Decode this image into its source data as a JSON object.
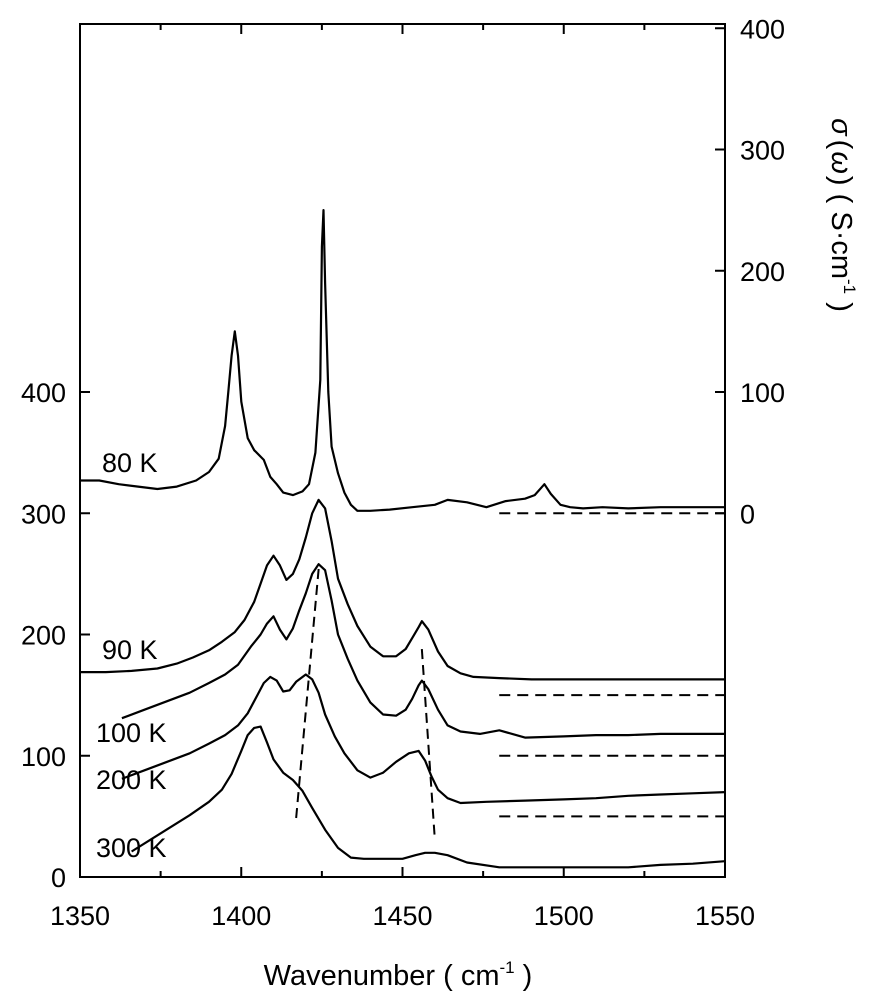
{
  "chart_data": {
    "type": "line",
    "xlabel": "Wavenumber ( cm",
    "xlabel_sup": "-1",
    "xlabel_end": " )",
    "ylabel_right_parts": [
      "σ",
      "(",
      "ω",
      ")",
      " ( S·cm",
      "-1",
      " )"
    ],
    "x_ticks": [
      "1350",
      "1400",
      "1450",
      "1500",
      "1550"
    ],
    "y_ticks_left": [
      "0",
      "100",
      "200",
      "300",
      "400"
    ],
    "y_ticks_right": [
      "0",
      "100",
      "200",
      "300",
      "400"
    ],
    "xlim": [
      1350,
      1550
    ],
    "ylim_left": [
      0,
      500
    ],
    "ylim_right": [
      0,
      400
    ],
    "series": [
      {
        "name": "80 K",
        "baseline": 300,
        "x": [
          1350,
          1356,
          1362,
          1368,
          1374,
          1380,
          1386,
          1390,
          1393,
          1395,
          1396,
          1397,
          1398,
          1399,
          1400,
          1402,
          1404,
          1407,
          1409,
          1411,
          1413,
          1416,
          1419,
          1421,
          1423,
          1424.5,
          1425,
          1425.5,
          1426,
          1427,
          1428,
          1430,
          1432,
          1434,
          1436,
          1440,
          1446,
          1453,
          1460,
          1464,
          1470,
          1476,
          1482,
          1488,
          1491,
          1493,
          1494,
          1496,
          1499,
          1502,
          1506,
          1512,
          1520,
          1530,
          1540,
          1550
        ],
        "y": [
          27,
          27,
          24,
          22,
          20,
          22,
          27,
          34,
          45,
          72,
          100,
          130,
          150,
          130,
          92,
          62,
          52,
          44,
          30,
          24,
          17,
          15,
          18,
          24,
          50,
          110,
          220,
          250,
          190,
          100,
          55,
          33,
          17,
          7,
          2,
          2,
          3,
          5,
          7,
          11,
          9,
          5,
          10,
          12,
          15,
          21,
          24,
          16,
          7,
          5,
          4,
          5,
          4,
          5,
          5,
          5
        ]
      },
      {
        "name": "90 K",
        "baseline": 150,
        "x": [
          1350,
          1358,
          1366,
          1374,
          1380,
          1385,
          1390,
          1394,
          1398,
          1401,
          1404,
          1406,
          1408,
          1410,
          1412,
          1414,
          1416,
          1418,
          1420,
          1422,
          1424,
          1426,
          1428,
          1430,
          1433,
          1436,
          1440,
          1444,
          1448,
          1451,
          1453,
          1455,
          1456,
          1458,
          1461,
          1464,
          1468,
          1472,
          1480,
          1490,
          1500,
          1510,
          1520,
          1530,
          1540,
          1550
        ],
        "y": [
          19,
          19,
          20,
          22,
          26,
          31,
          37,
          44,
          52,
          62,
          77,
          92,
          107,
          115,
          107,
          95,
          100,
          112,
          130,
          150,
          161,
          154,
          127,
          96,
          75,
          57,
          40,
          32,
          32,
          38,
          47,
          56,
          61,
          54,
          36,
          24,
          18,
          15,
          14,
          13,
          13,
          13,
          13,
          13,
          13,
          13
        ]
      },
      {
        "name": "100 K",
        "baseline": 100,
        "x": [
          1363,
          1370,
          1377,
          1384,
          1390,
          1395,
          1399,
          1403,
          1406,
          1408,
          1410,
          1412,
          1414,
          1416,
          1418,
          1420,
          1422,
          1424,
          1426,
          1428,
          1430,
          1433,
          1436,
          1440,
          1444,
          1448,
          1451,
          1453,
          1455,
          1456,
          1458,
          1461,
          1464,
          1468,
          1474,
          1480,
          1488,
          1500,
          1510,
          1520,
          1530,
          1540,
          1550
        ],
        "y": [
          31,
          38,
          45,
          52,
          60,
          67,
          75,
          90,
          100,
          109,
          115,
          104,
          96,
          105,
          120,
          134,
          150,
          158,
          153,
          128,
          100,
          80,
          62,
          44,
          34,
          33,
          38,
          47,
          58,
          62,
          55,
          38,
          25,
          20,
          18,
          21,
          15,
          16,
          17,
          17,
          18,
          18,
          18
        ]
      },
      {
        "name": "200 K",
        "baseline": 50,
        "x": [
          1363,
          1370,
          1377,
          1384,
          1390,
          1395,
          1399,
          1402,
          1405,
          1407,
          1409,
          1411,
          1413,
          1415,
          1417,
          1420,
          1422,
          1424,
          1426,
          1429,
          1432,
          1436,
          1440,
          1444,
          1448,
          1452,
          1455,
          1457,
          1459,
          1461,
          1464,
          1468,
          1476,
          1488,
          1500,
          1510,
          1520,
          1530,
          1540,
          1550
        ],
        "y": [
          31,
          38,
          45,
          52,
          60,
          67,
          75,
          85,
          100,
          110,
          115,
          112,
          103,
          104,
          111,
          117,
          113,
          102,
          84,
          66,
          52,
          38,
          32,
          36,
          45,
          52,
          54,
          46,
          33,
          22,
          15,
          11,
          12,
          13,
          14,
          15,
          17,
          18,
          19,
          20
        ]
      },
      {
        "name": "300 K",
        "baseline": 0,
        "x": [
          1366,
          1372,
          1378,
          1384,
          1390,
          1394,
          1397,
          1400,
          1402,
          1404,
          1406,
          1408,
          1410,
          1413,
          1416,
          1419,
          1422,
          1426,
          1430,
          1434,
          1438,
          1442,
          1446,
          1450,
          1454,
          1457,
          1460,
          1464,
          1470,
          1480,
          1490,
          1500,
          1510,
          1520,
          1530,
          1540,
          1550
        ],
        "y": [
          21,
          31,
          41,
          51,
          62,
          72,
          85,
          104,
          117,
          123,
          124,
          111,
          97,
          86,
          80,
          71,
          57,
          39,
          24,
          16,
          15,
          15,
          15,
          15,
          18,
          20,
          20,
          18,
          12,
          8,
          8,
          8,
          8,
          8,
          10,
          11,
          13
        ]
      }
    ],
    "dashed_baselines": [
      {
        "y": 300,
        "x": [
          1480,
          1550
        ]
      },
      {
        "y": 150,
        "x": [
          1480,
          1550
        ]
      },
      {
        "y": 100,
        "x": [
          1480,
          1550
        ]
      },
      {
        "y": 50,
        "x": [
          1480,
          1550
        ]
      }
    ],
    "peak_guides": [
      {
        "x": [
          1424,
          1417
        ],
        "y": [
          254,
          48
        ]
      },
      {
        "x": [
          1456,
          1460
        ],
        "y": [
          188,
          32
        ]
      }
    ],
    "grid": false,
    "legend": "none"
  }
}
